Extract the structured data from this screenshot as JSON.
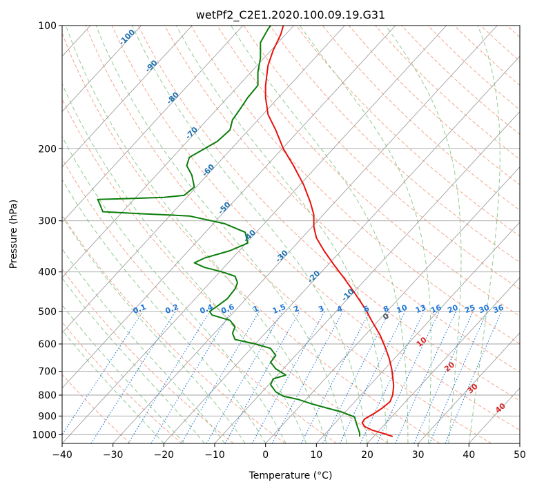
{
  "chart_data": {
    "type": "line",
    "title": "wetPf2_C2E1.2020.100.09.19.G31",
    "xlabel": "Temperature (°C)",
    "ylabel": "Pressure (hPa)",
    "xlim": [
      -40,
      50
    ],
    "ylim": [
      1050,
      100
    ],
    "y_scale": "log",
    "grid": true,
    "x_ticks": [
      "−40",
      "−30",
      "−20",
      "−10",
      "0",
      "10",
      "20",
      "30",
      "40",
      "50"
    ],
    "y_ticks": [
      {
        "p": 100,
        "label": "100"
      },
      {
        "p": 200,
        "label": "200"
      },
      {
        "p": 300,
        "label": "300"
      },
      {
        "p": 400,
        "label": "400"
      },
      {
        "p": 500,
        "label": "500"
      },
      {
        "p": 600,
        "label": "600"
      },
      {
        "p": 700,
        "label": "700"
      },
      {
        "p": 800,
        "label": "800"
      },
      {
        "p": 900,
        "label": "900"
      },
      {
        "p": 1000,
        "label": "1000"
      }
    ],
    "colors": {
      "temperature": "#e8100c",
      "dewpoint": "#0a7d0a",
      "isotherm": "#a0a0a0",
      "dry_adiabat": "#f4a58a",
      "moist_adiabat": "#8fc98f",
      "mixing_ratio": "#1f77d8",
      "isotherm_label": "#1f6fb0",
      "adiabat_label": "#d62728",
      "zero_label": "#555555"
    },
    "series": [
      {
        "name": "temperature",
        "points": [
          [
            25.0,
            1010
          ],
          [
            23.5,
            995
          ],
          [
            21.0,
            975
          ],
          [
            19.5,
            955
          ],
          [
            19.0,
            935
          ],
          [
            19.5,
            915
          ],
          [
            21.5,
            885
          ],
          [
            23.0,
            860
          ],
          [
            24.5,
            830
          ],
          [
            25.0,
            800
          ],
          [
            25.2,
            760
          ],
          [
            25.0,
            720
          ],
          [
            24.8,
            690
          ],
          [
            24.3,
            650
          ],
          [
            23.5,
            610
          ],
          [
            22.5,
            570
          ],
          [
            21.0,
            530
          ],
          [
            19.5,
            490
          ],
          [
            17.5,
            450
          ],
          [
            15.5,
            415
          ],
          [
            13.5,
            385
          ],
          [
            11.5,
            355
          ],
          [
            10.0,
            330
          ],
          [
            9.5,
            310
          ],
          [
            9.5,
            290
          ],
          [
            8.8,
            270
          ],
          [
            7.5,
            245
          ],
          [
            5.5,
            220
          ],
          [
            3.5,
            200
          ],
          [
            2.0,
            180
          ],
          [
            0.5,
            165
          ],
          [
            0.0,
            150
          ],
          [
            0.0,
            140
          ],
          [
            0.5,
            125
          ],
          [
            1.5,
            115
          ],
          [
            3.0,
            105
          ],
          [
            3.5,
            100
          ]
        ]
      },
      {
        "name": "dewpoint",
        "points": [
          [
            18.5,
            1010
          ],
          [
            18.5,
            990
          ],
          [
            18.0,
            950
          ],
          [
            17.5,
            905
          ],
          [
            15.0,
            880
          ],
          [
            12.0,
            860
          ],
          [
            9.0,
            840
          ],
          [
            6.5,
            820
          ],
          [
            3.5,
            805
          ],
          [
            2.0,
            785
          ],
          [
            1.0,
            755
          ],
          [
            1.5,
            730
          ],
          [
            4.0,
            715
          ],
          [
            2.0,
            690
          ],
          [
            1.0,
            665
          ],
          [
            2.0,
            640
          ],
          [
            1.0,
            615
          ],
          [
            -2.0,
            600
          ],
          [
            -6.0,
            585
          ],
          [
            -6.5,
            565
          ],
          [
            -6.0,
            545
          ],
          [
            -7.0,
            525
          ],
          [
            -10.5,
            510
          ],
          [
            -11.0,
            500
          ],
          [
            -9.5,
            485
          ],
          [
            -7.5,
            465
          ],
          [
            -6.0,
            440
          ],
          [
            -5.5,
            425
          ],
          [
            -6.0,
            410
          ],
          [
            -8.5,
            400
          ],
          [
            -12.0,
            390
          ],
          [
            -14.0,
            380
          ],
          [
            -12.0,
            370
          ],
          [
            -7.0,
            355
          ],
          [
            -3.5,
            340
          ],
          [
            -4.0,
            320
          ],
          [
            -8.0,
            305
          ],
          [
            -15.0,
            292
          ],
          [
            -25.0,
            288
          ],
          [
            -32.0,
            285
          ],
          [
            -32.5,
            275
          ],
          [
            -33.0,
            266
          ],
          [
            -28.0,
            265
          ],
          [
            -20.0,
            263
          ],
          [
            -16.0,
            260
          ],
          [
            -14.0,
            248
          ],
          [
            -14.5,
            232
          ],
          [
            -15.5,
            220
          ],
          [
            -15.0,
            210
          ],
          [
            -12.0,
            200
          ],
          [
            -9.5,
            192
          ],
          [
            -7.0,
            180
          ],
          [
            -6.5,
            170
          ],
          [
            -5.0,
            160
          ],
          [
            -3.5,
            150
          ],
          [
            -1.5,
            140
          ],
          [
            -1.5,
            130
          ],
          [
            -1.0,
            120
          ],
          [
            -1.0,
            110
          ],
          [
            0.5,
            102
          ],
          [
            1.0,
            100
          ]
        ]
      }
    ],
    "isotherm_labels": [
      "-100",
      "-90",
      "-80",
      "-70",
      "-60",
      "-50",
      "-40",
      "-30",
      "-20",
      "-10"
    ],
    "mixing_ratio_labels": [
      "0.1",
      "0.2",
      "0.4",
      "0.6",
      "1",
      "1.5",
      "2",
      "3",
      "4",
      "6",
      "8",
      "10",
      "13",
      "16",
      "20",
      "25",
      "30",
      "36"
    ],
    "adiabat_labels": [
      "0",
      "10",
      "20",
      "30",
      "40"
    ]
  }
}
